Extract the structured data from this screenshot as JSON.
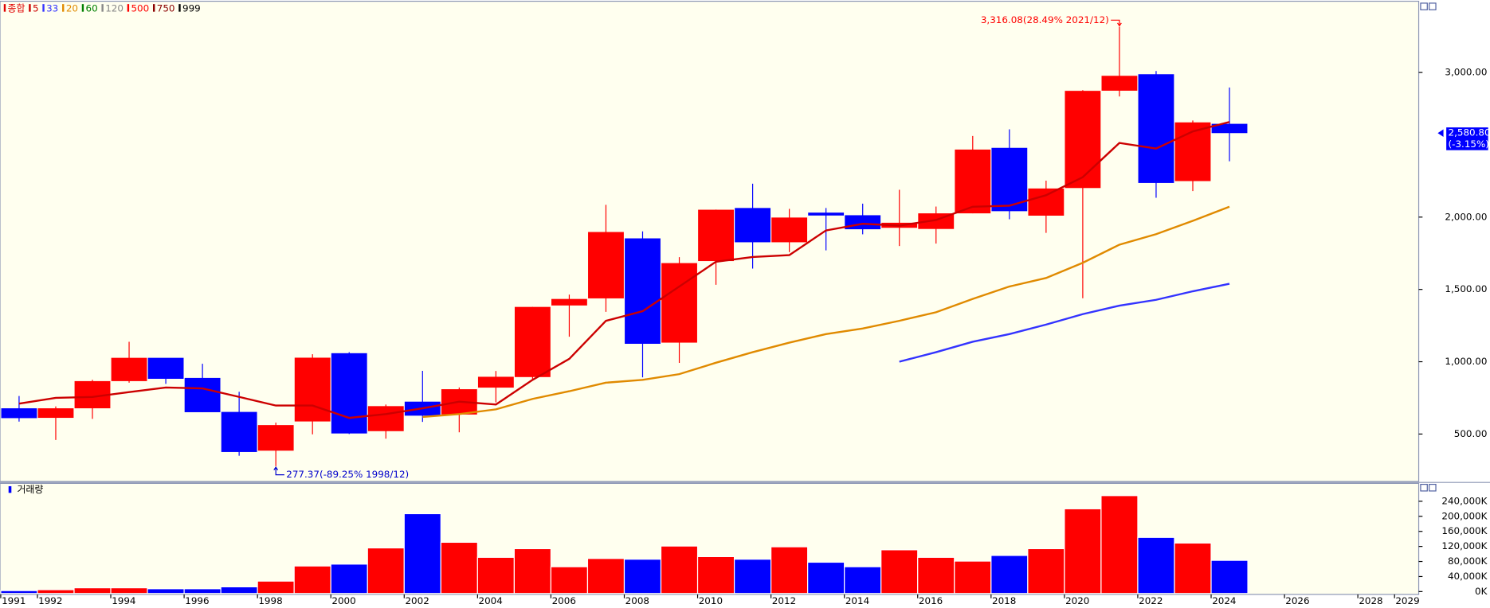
{
  "chart_data": [
    {
      "type": "candlestick",
      "name": "종합",
      "name_color": "#e00000",
      "x": [
        1991,
        1992,
        1993,
        1994,
        1995,
        1996,
        1997,
        1998,
        1999,
        2000,
        2001,
        2002,
        2003,
        2004,
        2005,
        2006,
        2007,
        2008,
        2009,
        2010,
        2011,
        2012,
        2013,
        2014,
        2015,
        2016,
        2017,
        2018,
        2019,
        2020,
        2021,
        2022,
        2023,
        2024
      ],
      "open": [
        678,
        612,
        678,
        866,
        1027,
        888,
        653,
        385,
        587,
        1059,
        520,
        724,
        635,
        821,
        894,
        1389,
        1438,
        1853,
        1132,
        1696,
        2063,
        1826,
        2031,
        2013,
        1926,
        1918,
        2026,
        2479,
        2010,
        2201,
        2874,
        2988,
        2249,
        2645
      ],
      "high": [
        763,
        691,
        875,
        1138,
        1016,
        986,
        792,
        579,
        1052,
        1066,
        704,
        937,
        822,
        936,
        1379,
        1464,
        2085,
        1901,
        1723,
        2052,
        2231,
        2057,
        2063,
        2093,
        2189,
        2073,
        2561,
        2607,
        2252,
        2878,
        3316.08,
        3010,
        2668,
        2896
      ],
      "low": [
        586,
        459,
        605,
        855,
        847,
        651,
        350,
        277.37,
        498,
        500,
        468,
        584,
        512,
        719,
        870,
        1173,
        1345,
        892,
        992,
        1532,
        1644,
        1758,
        1770,
        1881,
        1800,
        1817,
        2026,
        1985,
        1891,
        1439,
        2834,
        2134,
        2180,
        2386
      ],
      "close": [
        610,
        678,
        866,
        1027,
        882,
        651,
        376,
        562,
        1028,
        504,
        693,
        627,
        810,
        896,
        1379,
        1434,
        1897,
        1124,
        1682,
        2051,
        1826,
        1997,
        2011,
        1916,
        1961,
        2026,
        2467,
        2041,
        2198,
        2873,
        2977,
        2236,
        2655,
        2580.8
      ],
      "up_color": "#ff0000",
      "down_color": "#0000ff",
      "series": [
        {
          "name": "5",
          "color": "#cc0000",
          "values": [
            710,
            750,
            757,
            790,
            822,
            816,
            757,
            697,
            697,
            612,
            638,
            678,
            724,
            704,
            875,
            1020,
            1283,
            1349,
            1520,
            1691,
            1724,
            1737,
            1908,
            1954,
            1941,
            1980,
            2072,
            2079,
            2151,
            2276,
            2513,
            2474,
            2592,
            2658
          ]
        },
        {
          "name": "33",
          "color": "#3333ff",
          "values": [
            null,
            null,
            null,
            null,
            null,
            null,
            null,
            null,
            null,
            null,
            null,
            null,
            null,
            null,
            null,
            null,
            null,
            null,
            null,
            null,
            null,
            null,
            null,
            null,
            1000,
            1066,
            1138,
            1191,
            1257,
            1329,
            1388,
            1428,
            1487,
            1539
          ]
        },
        {
          "name": "20",
          "color": "#e08a00",
          "values": [
            null,
            null,
            null,
            null,
            null,
            null,
            null,
            null,
            null,
            null,
            null,
            618,
            638,
            671,
            743,
            796,
            855,
            875,
            914,
            993,
            1066,
            1132,
            1191,
            1230,
            1283,
            1342,
            1434,
            1520,
            1579,
            1684,
            1809,
            1882,
            1974,
            2072
          ]
        },
        {
          "name": "60",
          "color": "#008000",
          "values": [
            null,
            null,
            null,
            null,
            null,
            null,
            null,
            null,
            null,
            null,
            null,
            null,
            null,
            null,
            null,
            null,
            null,
            null,
            null,
            null,
            null,
            null,
            null,
            null,
            null,
            null,
            null,
            null,
            null,
            null,
            null,
            null,
            null,
            null
          ]
        },
        {
          "name": "120",
          "color": "#888888",
          "values": [
            null,
            null,
            null,
            null,
            null,
            null,
            null,
            null,
            null,
            null,
            null,
            null,
            null,
            null,
            null,
            null,
            null,
            null,
            null,
            null,
            null,
            null,
            null,
            null,
            null,
            null,
            null,
            null,
            null,
            null,
            null,
            null,
            null,
            null
          ]
        },
        {
          "name": "500",
          "color": "#ff0000",
          "values": [
            null,
            null,
            null,
            null,
            null,
            null,
            null,
            null,
            null,
            null,
            null,
            null,
            null,
            null,
            null,
            null,
            null,
            null,
            null,
            null,
            null,
            null,
            null,
            null,
            null,
            null,
            null,
            null,
            null,
            null,
            null,
            null,
            null,
            null
          ]
        },
        {
          "name": "750",
          "color": "#8b0000",
          "values": [
            null,
            null,
            null,
            null,
            null,
            null,
            null,
            null,
            null,
            null,
            null,
            null,
            null,
            null,
            null,
            null,
            null,
            null,
            null,
            null,
            null,
            null,
            null,
            null,
            null,
            null,
            null,
            null,
            null,
            null,
            null,
            null,
            null,
            null
          ]
        },
        {
          "name": "999",
          "color": "#000000",
          "values": [
            null,
            null,
            null,
            null,
            null,
            null,
            null,
            null,
            null,
            null,
            null,
            null,
            null,
            null,
            null,
            null,
            null,
            null,
            null,
            null,
            null,
            null,
            null,
            null,
            null,
            null,
            null,
            null,
            null,
            null,
            null,
            null,
            null,
            null
          ]
        }
      ],
      "xlim": [
        1990.48,
        2029.16
      ],
      "ylim": [
        172,
        3486
      ],
      "yticks": [
        {
          "value": 500,
          "label": "500.00"
        },
        {
          "value": 1000,
          "label": "1,000.00"
        },
        {
          "value": 1500,
          "label": "1,500.00"
        },
        {
          "value": 2000,
          "label": "2,000.00"
        },
        {
          "value": 3000,
          "label": "3,000.00"
        }
      ],
      "high_label": "3,316.08(28.49% 2021/12)",
      "high_label_color": "#ff0000",
      "low_label": "277.37(-89.25% 1998/12)",
      "low_label_color": "#0000cc",
      "last_close_label": "2,580.80",
      "last_change_label": "(-3.15%)",
      "last_box_color": "#0000ff"
    },
    {
      "type": "bar",
      "title": "거래량",
      "values": [
        2500,
        5000,
        10000,
        10000,
        7500,
        7500,
        12600,
        27800,
        68000,
        73000,
        116000,
        207000,
        131000,
        91000,
        114000,
        66000,
        88000,
        86000,
        121000,
        93000,
        86000,
        119000,
        78000,
        66000,
        111000,
        91000,
        81000,
        96000,
        114000,
        220000,
        255000,
        144000,
        129000,
        83000
      ],
      "ylim": [
        0,
        280000
      ],
      "yticks": [
        {
          "value": 0,
          "label": "0K"
        },
        {
          "value": 40000,
          "label": "40,000K"
        },
        {
          "value": 80000,
          "label": "80,000K"
        },
        {
          "value": 120000,
          "label": "120,000K"
        },
        {
          "value": 160000,
          "label": "160,000K"
        },
        {
          "value": 200000,
          "label": "200,000K"
        },
        {
          "value": 240000,
          "label": "240,000K"
        }
      ],
      "xticks": [
        1991,
        1992,
        1994,
        1996,
        1998,
        2000,
        2002,
        2004,
        2006,
        2008,
        2010,
        2012,
        2014,
        2016,
        2018,
        2020,
        2022,
        2024,
        2026,
        2028,
        2029
      ]
    }
  ]
}
